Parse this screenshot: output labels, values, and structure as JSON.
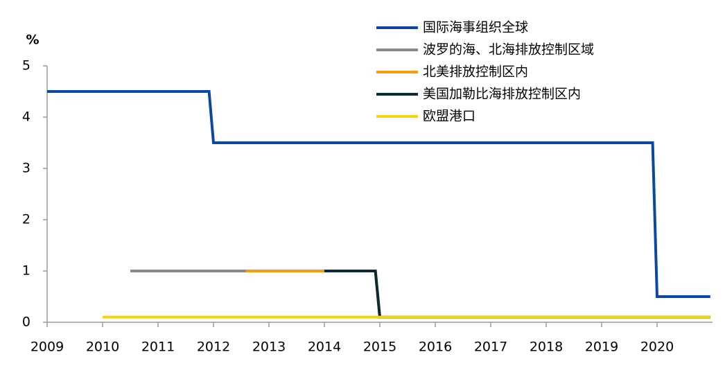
{
  "chart_data": {
    "type": "line",
    "y_label": "%",
    "xlim": [
      2009,
      2021
    ],
    "xticks": [
      2009,
      2010,
      2011,
      2012,
      2013,
      2014,
      2015,
      2016,
      2017,
      2018,
      2019,
      2020
    ],
    "ylim": [
      0,
      5
    ],
    "yticks": [
      0,
      1,
      2,
      3,
      4,
      5
    ],
    "grid": false,
    "series": [
      {
        "name": "国际海事组织全球",
        "color": "#0d47a1",
        "x": [
          2009,
          2011.92,
          2012,
          2019.92,
          2020,
          2020.96
        ],
        "values": [
          4.5,
          4.5,
          3.5,
          3.5,
          0.5,
          0.5
        ]
      },
      {
        "name": "波罗的海、北海排放控制区域",
        "color": "#888888",
        "x": [
          2010.5,
          2014.92,
          2015,
          2020.96
        ],
        "values": [
          1,
          1,
          0.1,
          0.1
        ]
      },
      {
        "name": "北美排放控制区内",
        "color": "#f39c12",
        "x": [
          2012.58,
          2014.92,
          2015,
          2020.96
        ],
        "values": [
          1,
          1,
          0.1,
          0.1
        ]
      },
      {
        "name": "美国加勒比海排放控制区内",
        "color": "#0b2a33",
        "x": [
          2014,
          2014.92,
          2015,
          2020.96
        ],
        "values": [
          1,
          1,
          0.1,
          0.1
        ]
      },
      {
        "name": "欧盟港口",
        "color": "#f5d40f",
        "x": [
          2010,
          2020.96
        ],
        "values": [
          0.1,
          0.1
        ]
      }
    ]
  }
}
